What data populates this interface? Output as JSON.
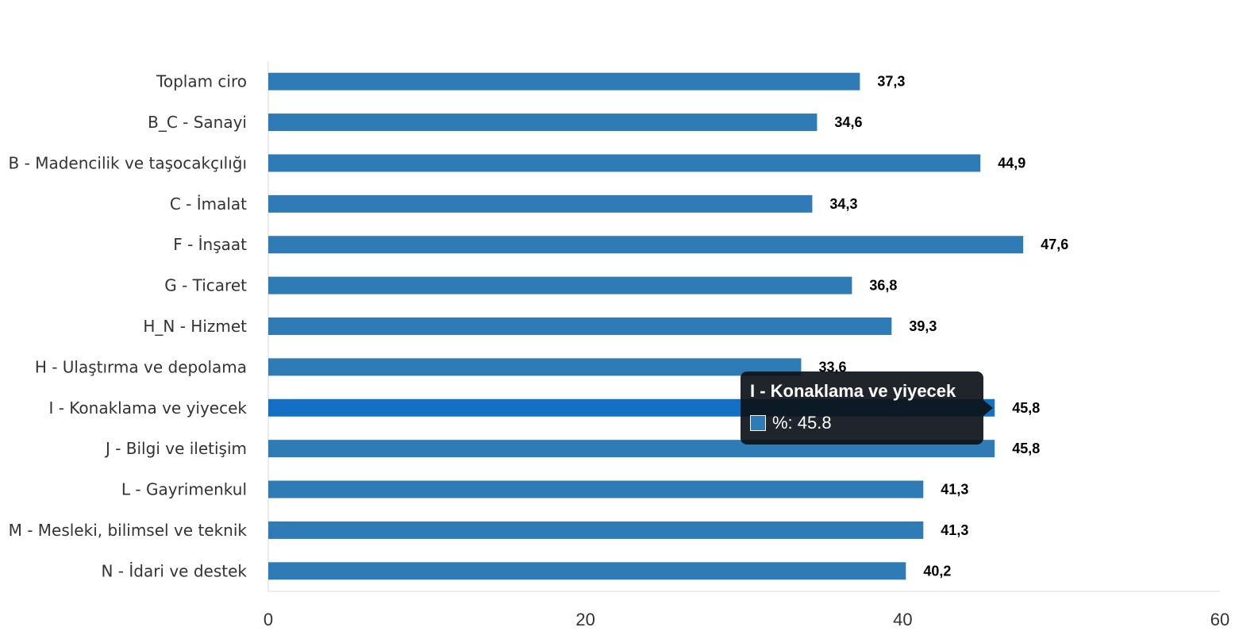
{
  "chart_data": {
    "type": "bar",
    "orientation": "horizontal",
    "categories": [
      "Toplam ciro",
      "B_C - Sanayi",
      "B - Madencilik ve taşocakçılığı",
      "C - İmalat",
      "F - İnşaat",
      "G - Ticaret",
      "H_N - Hizmet",
      "H - Ulaştırma ve depolama",
      "I - Konaklama ve yiyecek",
      "J - Bilgi ve iletişim",
      "L - Gayrimenkul",
      "M - Mesleki, bilimsel ve teknik",
      "N - İdari ve destek"
    ],
    "values": [
      37.3,
      34.6,
      44.9,
      34.3,
      47.6,
      36.8,
      39.3,
      33.6,
      45.8,
      45.8,
      41.3,
      41.3,
      40.2
    ],
    "value_labels": [
      "37,3",
      "34,6",
      "44,9",
      "34,3",
      "47,6",
      "36,8",
      "39,3",
      "33,6",
      "45,8",
      "45,8",
      "41,3",
      "41,3",
      "40,2"
    ],
    "x_ticks": [
      "0",
      "20",
      "40",
      "60"
    ],
    "xlim": [
      0,
      60
    ],
    "grid": false,
    "bar_color": "#2f7bb6",
    "highlight_color": "#1370c4",
    "highlight_index": 8,
    "tooltip": {
      "title": "I - Konaklama ve yiyecek",
      "value_text": "%: 45.8"
    }
  }
}
